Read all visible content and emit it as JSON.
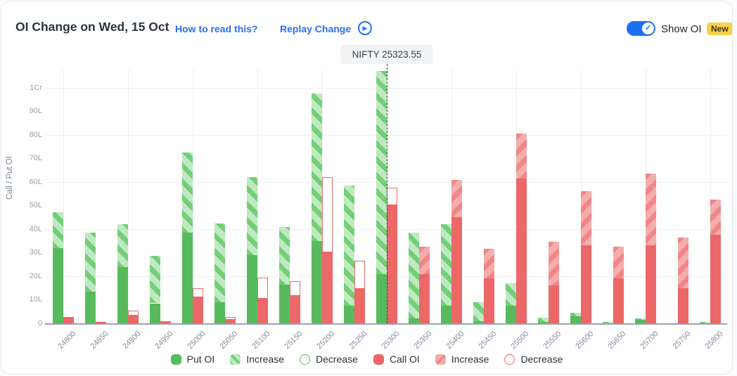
{
  "header": {
    "title": "OI Change on Wed, 15 Oct",
    "how_to_read_label": "How to read this?",
    "replay_label": "Replay Change",
    "play_icon": "play-circle-icon",
    "show_oi_label": "Show OI",
    "show_oi_state": "on",
    "new_badge": "New",
    "accent_blue": "#2a6ef5",
    "toggle_blue": "#1d6ff2",
    "badge_yellow": "#f6d14b"
  },
  "tooltip": {
    "label": "NIFTY 25323.55"
  },
  "chart_data": {
    "type": "bar",
    "title": "OI Change on Wed, 15 Oct",
    "ylabel": "Call / Put OI",
    "xlabel": "",
    "unit": "Lakh (L), 1Cr = 100L",
    "ylim": [
      0,
      108
    ],
    "grid": "horizontal every 20L, vertical every 100 strike points",
    "legend_position": "bottom-center",
    "categories": [
      "24800",
      "24850",
      "24900",
      "24950",
      "25000",
      "25050",
      "25100",
      "25150",
      "25200",
      "25250",
      "25300",
      "25350",
      "25400",
      "25450",
      "25500",
      "25550",
      "25600",
      "25650",
      "25700",
      "25750",
      "25800"
    ],
    "y_ticks": [
      {
        "label": "0",
        "value": 0
      },
      {
        "label": "10L",
        "value": 10
      },
      {
        "label": "20L",
        "value": 20
      },
      {
        "label": "30L",
        "value": 30
      },
      {
        "label": "40L",
        "value": 40
      },
      {
        "label": "50L",
        "value": 50
      },
      {
        "label": "60L",
        "value": 60
      },
      {
        "label": "70L",
        "value": 70
      },
      {
        "label": "80L",
        "value": 80
      },
      {
        "label": "90L",
        "value": 90
      },
      {
        "label": "1Cr",
        "value": 100
      }
    ],
    "series": [
      {
        "name": "Put OI",
        "color": "#57bb5e",
        "base": [
          32,
          13.5,
          24,
          8.5,
          38.5,
          9,
          29,
          16.5,
          35,
          7.5,
          21,
          2,
          7.5,
          1,
          7.5,
          0.5,
          3,
          0,
          1.5,
          0,
          0
        ],
        "change": [
          15,
          25,
          18,
          20,
          34,
          33.5,
          33,
          24.5,
          62.5,
          51,
          86,
          36.5,
          34.5,
          8,
          9.5,
          2,
          1.5,
          0.7,
          0.5,
          0,
          0.5
        ],
        "change_type": [
          "increase",
          "increase",
          "increase",
          "increase",
          "increase",
          "increase",
          "increase",
          "increase",
          "increase",
          "increase",
          "increase",
          "increase",
          "increase",
          "increase",
          "increase",
          "increase",
          "increase",
          "increase",
          "increase",
          "none",
          "increase"
        ]
      },
      {
        "name": "Call OI",
        "color": "#ec6767",
        "base": [
          2.8,
          0.6,
          3.2,
          1,
          11,
          1.6,
          10.5,
          11.5,
          30,
          14.5,
          50,
          21,
          45,
          19,
          61.5,
          16,
          33,
          19,
          33,
          15,
          37.5
        ],
        "change": [
          0,
          0,
          2.2,
          0,
          4,
          1.2,
          9,
          6.5,
          32,
          12,
          7.5,
          11.5,
          16,
          12.5,
          19,
          18.5,
          23,
          13.5,
          30.5,
          21.5,
          15
        ],
        "change_type": [
          "none",
          "none",
          "decrease",
          "none",
          "decrease",
          "decrease",
          "decrease",
          "decrease",
          "decrease",
          "decrease",
          "decrease",
          "increase",
          "increase",
          "increase",
          "increase",
          "increase",
          "increase",
          "increase",
          "increase",
          "increase",
          "increase"
        ]
      }
    ],
    "annotations": [
      {
        "type": "vline-dashed",
        "label": "NIFTY 25323.55",
        "at_category": "25300",
        "value": 25323.55
      }
    ],
    "legend": [
      {
        "label": "Put OI",
        "swatch": "green-solid"
      },
      {
        "label": "Increase",
        "swatch": "green-hatch"
      },
      {
        "label": "Decrease",
        "swatch": "green-outline"
      },
      {
        "label": "Call OI",
        "swatch": "red-solid"
      },
      {
        "label": "Increase",
        "swatch": "red-hatch"
      },
      {
        "label": "Decrease",
        "swatch": "red-outline"
      }
    ],
    "colors": {
      "put_solid": "#57bb5e",
      "put_increase_bg": "#c0e8c1",
      "put_increase_stripe": "#72cf78",
      "call_solid": "#ec6767",
      "call_increase_bg": "#f5adad",
      "call_increase_stripe": "#f08787",
      "decrease_fill": "#ffffff",
      "gridline": "#edeff2",
      "axis_line": "#9aa3ad",
      "tick_text": "#98a0aa"
    }
  }
}
